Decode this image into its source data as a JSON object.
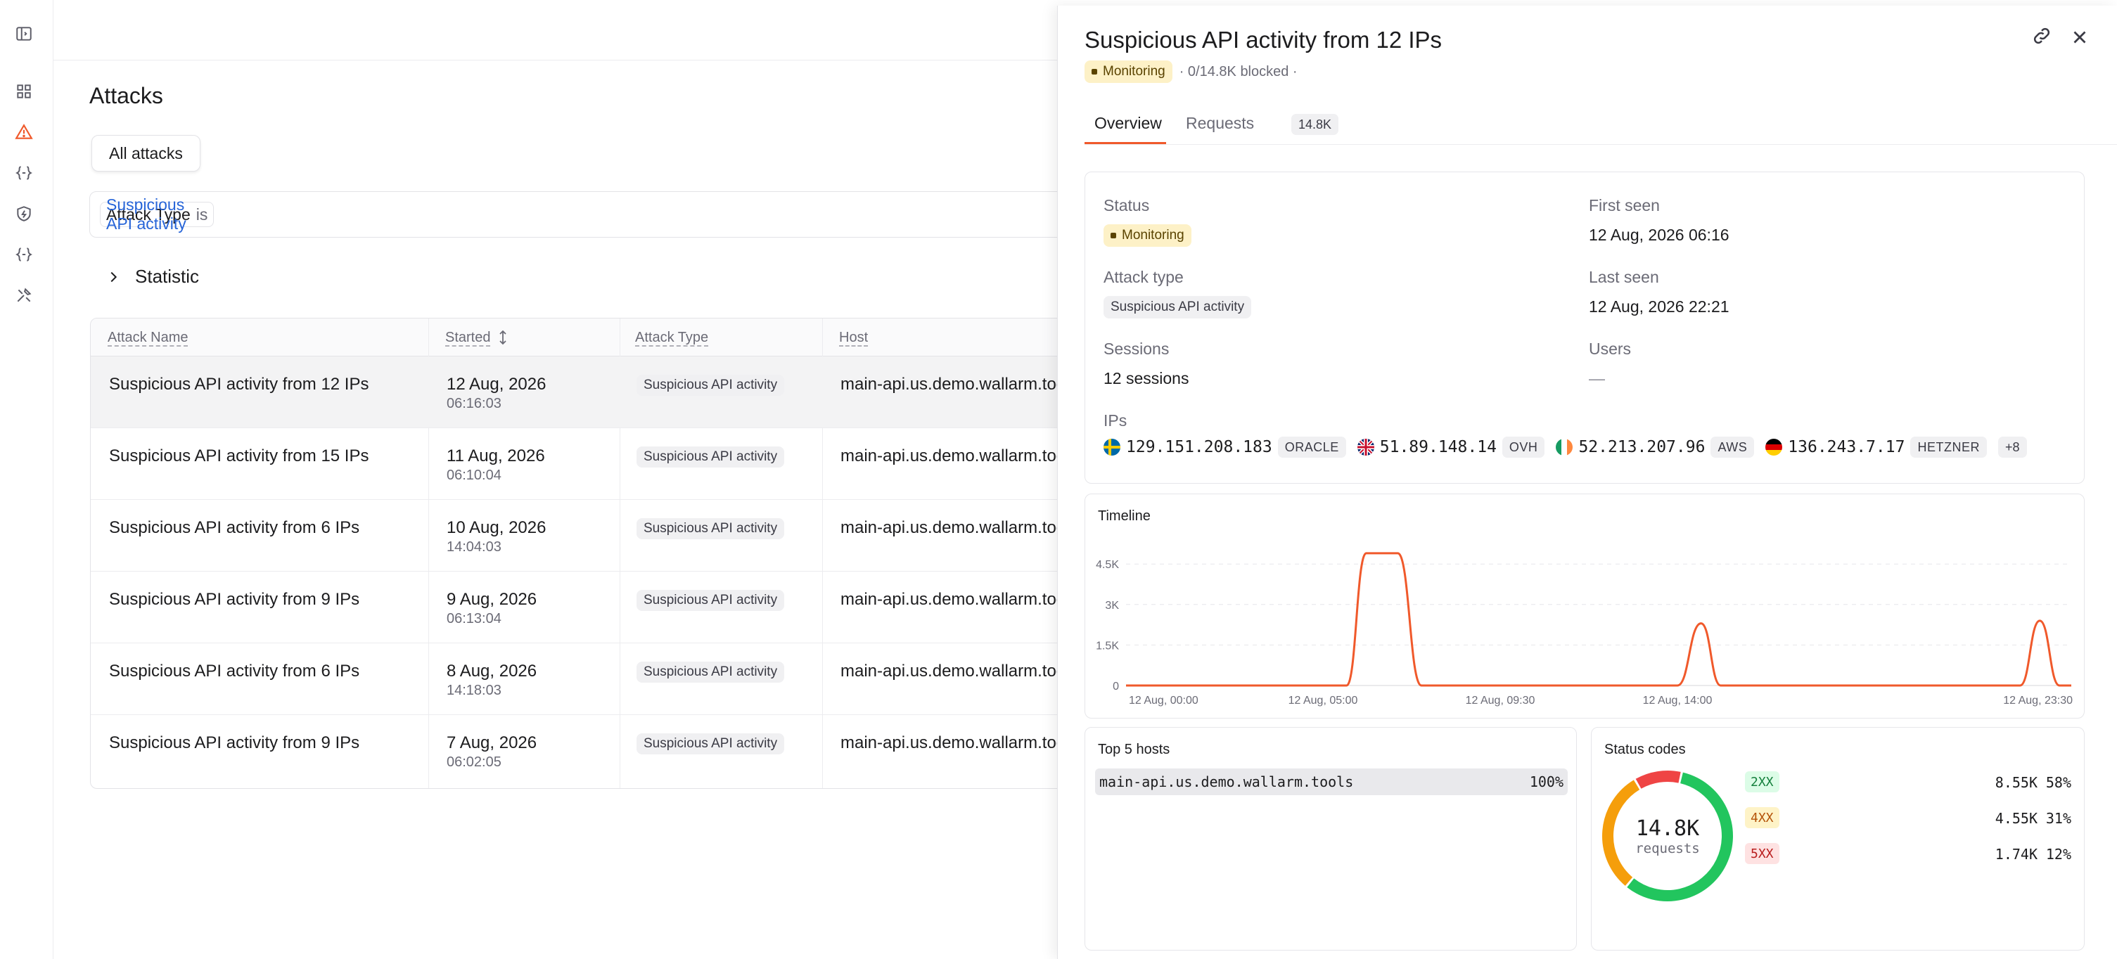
{
  "page": {
    "title": "Attacks",
    "tab_label": "All attacks",
    "filter": {
      "field": "Attack Type",
      "operator": "is",
      "value": "Suspicious API activity"
    },
    "statistic_label": "Statistic"
  },
  "table": {
    "columns": [
      "Attack Name",
      "Started",
      "Attack Type",
      "Host"
    ],
    "rows": [
      {
        "name": "Suspicious API activity from 12 IPs",
        "date": "12 Aug, 2026",
        "time": "06:16:03",
        "type": "Suspicious API activity",
        "host": "main-api.us.demo.wallarm.tools"
      },
      {
        "name": "Suspicious API activity from 15 IPs",
        "date": "11 Aug, 2026",
        "time": "06:10:04",
        "type": "Suspicious API activity",
        "host": "main-api.us.demo.wallarm.tools"
      },
      {
        "name": "Suspicious API activity from 6 IPs",
        "date": "10 Aug, 2026",
        "time": "14:04:03",
        "type": "Suspicious API activity",
        "host": "main-api.us.demo.wallarm.tools"
      },
      {
        "name": "Suspicious API activity from 9 IPs",
        "date": "9 Aug, 2026",
        "time": "06:13:04",
        "type": "Suspicious API activity",
        "host": "main-api.us.demo.wallarm.tools"
      },
      {
        "name": "Suspicious API activity from 6 IPs",
        "date": "8 Aug, 2026",
        "time": "14:18:03",
        "type": "Suspicious API activity",
        "host": "main-api.us.demo.wallarm.tools"
      },
      {
        "name": "Suspicious API activity from 9 IPs",
        "date": "7 Aug, 2026",
        "time": "06:02:05",
        "type": "Suspicious API activity",
        "host": "main-api.us.demo.wallarm.tools"
      }
    ]
  },
  "drawer": {
    "title": "Suspicious API activity from 12 IPs",
    "status_badge": "Monitoring",
    "blocked_text": "· 0/14.8K blocked ·",
    "tabs": {
      "overview": "Overview",
      "requests": "Requests",
      "requests_count": "14.8K"
    },
    "info": {
      "status_label": "Status",
      "status_value": "Monitoring",
      "first_seen_label": "First seen",
      "first_seen_value": "12 Aug, 2026 06:16",
      "attack_type_label": "Attack type",
      "attack_type_value": "Suspicious API activity",
      "last_seen_label": "Last seen",
      "last_seen_value": "12 Aug, 2026 22:21",
      "sessions_label": "Sessions",
      "sessions_value": "12 sessions",
      "users_label": "Users",
      "users_value": "—",
      "ips_label": "IPs",
      "ips": [
        {
          "address": "129.151.208.183",
          "provider": "ORACLE",
          "flag": "se"
        },
        {
          "address": "51.89.148.14",
          "provider": "OVH",
          "flag": "gb"
        },
        {
          "address": "52.213.207.96",
          "provider": "AWS",
          "flag": "ie"
        },
        {
          "address": "136.243.7.17",
          "provider": "HETZNER",
          "flag": "de"
        }
      ],
      "ips_more": "+8"
    },
    "timeline_title": "Timeline",
    "hosts_title": "Top 5 hosts",
    "hosts": [
      {
        "name": "main-api.us.demo.wallarm.tools",
        "percent": "100%"
      }
    ],
    "status_title": "Status codes",
    "status_total": "14.8K",
    "status_total_label": "requests",
    "status_codes": [
      {
        "code": "2XX",
        "count": "8.55K",
        "percent": "58%"
      },
      {
        "code": "4XX",
        "count": "4.55K",
        "percent": "31%"
      },
      {
        "code": "5XX",
        "count": "1.74K",
        "percent": "12%"
      }
    ]
  },
  "colors": {
    "accent": "#f0592b",
    "link": "#2664d8",
    "code_2xx": "#22c55e",
    "code_4xx": "#f59e0b",
    "code_5xx": "#ef4444"
  },
  "icons": [
    "sidebar-toggle-icon",
    "dashboard-icon",
    "alert-triangle-icon",
    "code-braces-icon",
    "shield-icon",
    "api-braces-icon",
    "tools-icon",
    "chevron-right-icon",
    "sort-icon",
    "link-icon",
    "close-icon"
  ],
  "chart_data": {
    "type": "line",
    "title": "Timeline",
    "x_ticks": [
      "12 Aug, 00:00",
      "12 Aug, 05:00",
      "12 Aug, 09:30",
      "12 Aug, 14:00",
      "12 Aug, 23:30"
    ],
    "y_ticks": [
      "0",
      "1.5K",
      "3K",
      "4.5K"
    ],
    "ylim": [
      0,
      5000
    ],
    "x_hours": [
      0,
      5.6,
      6.1,
      6.9,
      7.5,
      14.0,
      14.6,
      15.1,
      22.7,
      23.2,
      23.7,
      24.0
    ],
    "values": [
      0,
      0,
      4900,
      4900,
      0,
      0,
      2300,
      0,
      0,
      2400,
      0,
      0
    ],
    "grid": true,
    "series": [
      {
        "values": [
          0,
          0,
          4900,
          4900,
          0,
          0,
          2300,
          0,
          0,
          2400,
          0,
          0
        ]
      }
    ]
  }
}
